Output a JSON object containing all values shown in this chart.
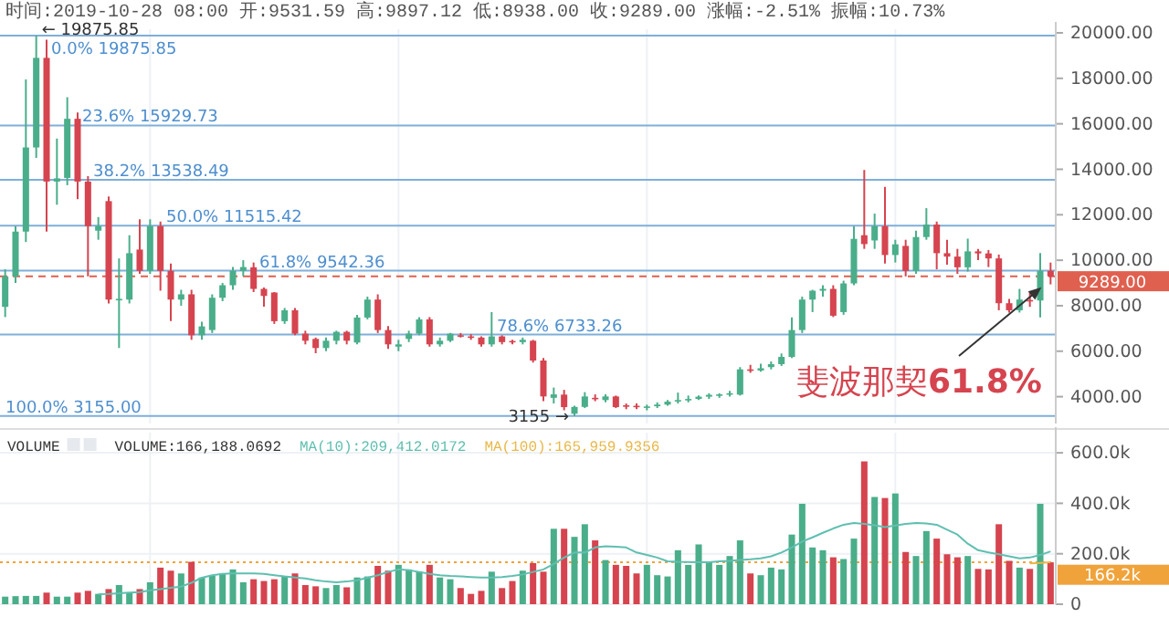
{
  "chart_data": [
    {
      "type": "candlestick",
      "title": "时间:2019-10-28 08:00  开:9531.59  高:9897.12  低:8938.00  收:9289.00  涨幅:-2.51%  振幅:10.73%",
      "categories": [
        null,
        null,
        null,
        null,
        null,
        null,
        null,
        null,
        null,
        null,
        null,
        null,
        null,
        null,
        null,
        null,
        null,
        null,
        null,
        null,
        null,
        null,
        null,
        null,
        null,
        null,
        null,
        null,
        null,
        null,
        null,
        null,
        null,
        null,
        null,
        null,
        null,
        null,
        null,
        null,
        null,
        null,
        null,
        null,
        null,
        null,
        null,
        null,
        null,
        null,
        null,
        null,
        null,
        null,
        null,
        null,
        null,
        null,
        null,
        null,
        null,
        null,
        null,
        null,
        null,
        null,
        null,
        null,
        null,
        null,
        null,
        null,
        null,
        null,
        null,
        null,
        null,
        null,
        null,
        null,
        null,
        null,
        null,
        null,
        null,
        null,
        null,
        null,
        null,
        null,
        null,
        null,
        null,
        null,
        null,
        null,
        null,
        null,
        null,
        null,
        null,
        null
      ],
      "ohlc": [
        [
          7950,
          9600,
          7500,
          9290
        ],
        [
          9290,
          11500,
          9000,
          11260
        ],
        [
          11260,
          17950,
          10800,
          14960
        ],
        [
          14960,
          19875.85,
          14500,
          18900
        ],
        [
          18900,
          19700,
          11260,
          13460
        ],
        [
          13460,
          15350,
          12440,
          13600
        ],
        [
          13620,
          17170,
          13300,
          16220
        ],
        [
          16220,
          16500,
          12680,
          13460
        ],
        [
          13460,
          13700,
          9290,
          11500
        ],
        [
          11300,
          11900,
          10900,
          11500
        ],
        [
          12600,
          12800,
          8100,
          8270
        ],
        [
          8270,
          10080,
          6140,
          8300
        ],
        [
          8270,
          11100,
          8100,
          10310
        ],
        [
          10470,
          11800,
          9400,
          9530
        ],
        [
          9530,
          11800,
          9400,
          11500
        ],
        [
          11500,
          11700,
          8660,
          9530
        ],
        [
          9530,
          9850,
          7330,
          8270
        ],
        [
          8270,
          8700,
          8000,
          8500
        ],
        [
          8500,
          8700,
          6500,
          6700
        ],
        [
          6700,
          7300,
          6500,
          7090
        ],
        [
          6930,
          8500,
          6800,
          8350
        ],
        [
          8350,
          9000,
          8200,
          8900
        ],
        [
          8900,
          9700,
          8700,
          9530
        ],
        [
          9530,
          10000,
          9300,
          9700
        ],
        [
          9690,
          9900,
          8600,
          8740
        ],
        [
          8740,
          8800,
          7960,
          8430
        ],
        [
          8580,
          8600,
          7200,
          7320
        ],
        [
          7320,
          7900,
          7200,
          7800
        ],
        [
          7800,
          7900,
          6700,
          6770
        ],
        [
          6770,
          6900,
          6300,
          6460
        ],
        [
          6540,
          6600,
          5910,
          6140
        ],
        [
          6140,
          6600,
          6000,
          6460
        ],
        [
          6460,
          6900,
          6300,
          6850
        ],
        [
          6850,
          6900,
          6300,
          6460
        ],
        [
          6380,
          7600,
          6300,
          7480
        ],
        [
          7480,
          8400,
          7400,
          8270
        ],
        [
          8270,
          8500,
          6800,
          6930
        ],
        [
          6930,
          7100,
          6100,
          6300
        ],
        [
          6200,
          6500,
          6000,
          6300
        ],
        [
          6540,
          6900,
          6400,
          6770
        ],
        [
          6770,
          7500,
          6700,
          7400
        ],
        [
          7400,
          7500,
          6200,
          6300
        ],
        [
          6300,
          6600,
          6200,
          6460
        ],
        [
          6460,
          6800,
          6400,
          6770
        ],
        [
          6700,
          6800,
          6600,
          6650
        ],
        [
          6650,
          6750,
          6500,
          6600
        ],
        [
          6600,
          6650,
          6200,
          6300
        ],
        [
          6300,
          7720,
          6200,
          6650
        ],
        [
          6650,
          6700,
          6300,
          6400
        ],
        [
          6450,
          6500,
          6300,
          6400
        ],
        [
          6400,
          6600,
          6300,
          6500
        ],
        [
          6460,
          6500,
          5500,
          5590
        ],
        [
          5590,
          5700,
          3800,
          4010
        ],
        [
          3950,
          4400,
          3700,
          4100
        ],
        [
          4090,
          4300,
          3400,
          3540
        ],
        [
          3250,
          3600,
          3155,
          3550
        ],
        [
          3550,
          4200,
          3500,
          4010
        ],
        [
          3950,
          4100,
          3800,
          3900
        ],
        [
          3850,
          4100,
          3750,
          4010
        ],
        [
          4010,
          4050,
          3500,
          3540
        ],
        [
          3620,
          3700,
          3450,
          3600
        ],
        [
          3600,
          3700,
          3450,
          3550
        ],
        [
          3540,
          3650,
          3400,
          3570
        ],
        [
          3580,
          3750,
          3500,
          3650
        ],
        [
          3650,
          3850,
          3600,
          3780
        ],
        [
          3800,
          4180,
          3700,
          3850
        ],
        [
          3850,
          4050,
          3750,
          3900
        ],
        [
          3900,
          4050,
          3850,
          4000
        ],
        [
          4000,
          4150,
          3900,
          4080
        ],
        [
          4050,
          4150,
          3950,
          4100
        ],
        [
          4100,
          4250,
          4000,
          4150
        ],
        [
          4090,
          5300,
          4050,
          5200
        ],
        [
          5200,
          5400,
          5050,
          5150
        ],
        [
          5150,
          5450,
          5100,
          5250
        ],
        [
          5300,
          5550,
          5200,
          5430
        ],
        [
          5430,
          5900,
          5350,
          5750
        ],
        [
          5750,
          7490,
          5700,
          6930
        ],
        [
          6930,
          8400,
          6800,
          8270
        ],
        [
          8270,
          8700,
          7720,
          8660
        ],
        [
          8660,
          8900,
          8400,
          8740
        ],
        [
          8740,
          8900,
          7500,
          7560
        ],
        [
          7720,
          9100,
          7600,
          8980
        ],
        [
          8980,
          11500,
          8900,
          10940
        ],
        [
          11100,
          13970,
          10500,
          10710
        ],
        [
          10870,
          12050,
          10500,
          11500
        ],
        [
          11500,
          13230,
          9850,
          10230
        ],
        [
          10230,
          10900,
          9900,
          10700
        ],
        [
          10630,
          10900,
          9290,
          9530
        ],
        [
          9530,
          11300,
          9400,
          11020
        ],
        [
          11020,
          12290,
          10900,
          11570
        ],
        [
          11570,
          11700,
          9600,
          10310
        ],
        [
          10310,
          10900,
          9800,
          10160
        ],
        [
          10160,
          10500,
          9400,
          9690
        ],
        [
          9690,
          10950,
          9500,
          10390
        ],
        [
          10390,
          10500,
          10000,
          10300
        ],
        [
          10300,
          10450,
          9700,
          10080
        ],
        [
          10080,
          10250,
          7800,
          8110
        ],
        [
          8110,
          8300,
          7700,
          7800
        ],
        [
          7800,
          8740,
          7700,
          8270
        ],
        [
          8250,
          8600,
          7950,
          8230
        ],
        [
          8230,
          10320,
          7490,
          9530
        ],
        [
          9531.59,
          9897.12,
          8938,
          9289
        ]
      ],
      "colors": [
        "#4aae8a",
        "#4aae8a",
        "#4aae8a",
        "#4aae8a",
        "#d5444f",
        "#4aae8a",
        "#4aae8a",
        "#d5444f",
        "#d5444f",
        "#4aae8a",
        "#d5444f",
        "#4aae8a",
        "#4aae8a",
        "#d5444f",
        "#4aae8a",
        "#d5444f",
        "#d5444f",
        "#4aae8a",
        "#d5444f",
        "#4aae8a",
        "#4aae8a",
        "#4aae8a",
        "#4aae8a",
        "#4aae8a",
        "#d5444f",
        "#d5444f",
        "#d5444f",
        "#4aae8a",
        "#d5444f",
        "#d5444f",
        "#d5444f",
        "#4aae8a",
        "#4aae8a",
        "#d5444f",
        "#4aae8a",
        "#4aae8a",
        "#d5444f",
        "#d5444f",
        "#4aae8a",
        "#4aae8a",
        "#4aae8a",
        "#d5444f",
        "#4aae8a",
        "#4aae8a",
        "#d5444f",
        "#d5444f",
        "#d5444f",
        "#4aae8a",
        "#d5444f",
        "#d5444f",
        "#4aae8a",
        "#d5444f",
        "#d5444f",
        "#4aae8a",
        "#d5444f",
        "#4aae8a",
        "#4aae8a",
        "#d5444f",
        "#4aae8a",
        "#d5444f",
        "#d5444f",
        "#d5444f",
        "#4aae8a",
        "#4aae8a",
        "#4aae8a",
        "#4aae8a",
        "#4aae8a",
        "#4aae8a",
        "#4aae8a",
        "#4aae8a",
        "#4aae8a",
        "#4aae8a",
        "#d5444f",
        "#4aae8a",
        "#4aae8a",
        "#4aae8a",
        "#4aae8a",
        "#4aae8a",
        "#4aae8a",
        "#4aae8a",
        "#d5444f",
        "#4aae8a",
        "#4aae8a",
        "#d5444f",
        "#4aae8a",
        "#d5444f",
        "#4aae8a",
        "#d5444f",
        "#4aae8a",
        "#4aae8a",
        "#d5444f",
        "#d5444f",
        "#d5444f",
        "#4aae8a",
        "#d5444f",
        "#d5444f",
        "#d5444f",
        "#d5444f",
        "#4aae8a",
        "#d5444f",
        "#4aae8a",
        "#d5444f"
      ],
      "ylim": [
        2820,
        20160
      ],
      "yticks": [
        {
          "value": 4000,
          "label": "4000.00"
        },
        {
          "value": 6000,
          "label": "6000.00"
        },
        {
          "value": 8000,
          "label": "8000.00"
        },
        {
          "value": 10000,
          "label": "10000.00"
        },
        {
          "value": 12000,
          "label": "12000.00"
        },
        {
          "value": 14000,
          "label": "14000.00"
        },
        {
          "value": 16000,
          "label": "16000.00"
        },
        {
          "value": 18000,
          "label": "18000.00"
        },
        {
          "value": 20000,
          "label": "20000.00"
        }
      ],
      "ref_lines": [
        {
          "axis": "y",
          "value": 19875.85,
          "label": "0.0% 19875.85",
          "color": "#7fafd9"
        },
        {
          "axis": "y",
          "value": 15929.73,
          "label": "23.6% 15929.73",
          "color": "#7fafd9"
        },
        {
          "axis": "y",
          "value": 13538.49,
          "label": "38.2% 13538.49",
          "color": "#7fafd9"
        },
        {
          "axis": "y",
          "value": 11515.42,
          "label": "50.0% 11515.42",
          "color": "#7fafd9"
        },
        {
          "axis": "y",
          "value": 9542.36,
          "label": "61.8% 9542.36",
          "color": "#7fafd9"
        },
        {
          "axis": "y",
          "value": 6733.26,
          "label": "78.6% 6733.26",
          "color": "#7fafd9"
        },
        {
          "axis": "y",
          "value": 3155.0,
          "label": "100.0% 3155.00",
          "color": "#7fafd9"
        },
        {
          "axis": "y",
          "value": 9289,
          "label": "9289.00",
          "color": "#e0604f",
          "line_style": "dashed"
        }
      ],
      "annotations": [
        "← 19875.85",
        "3155 →",
        "斐波那契61.8%"
      ],
      "grid": "x",
      "tick_labels": "y"
    },
    {
      "type": "bar",
      "title": "VOLUME",
      "categories": [
        null,
        null,
        null,
        null,
        null,
        null,
        null,
        null,
        null,
        null,
        null,
        null,
        null,
        null,
        null,
        null,
        null,
        null,
        null,
        null,
        null,
        null,
        null,
        null,
        null,
        null,
        null,
        null,
        null,
        null,
        null,
        null,
        null,
        null,
        null,
        null,
        null,
        null,
        null,
        null,
        null,
        null,
        null,
        null,
        null,
        null,
        null,
        null,
        null,
        null,
        null,
        null,
        null,
        null,
        null,
        null,
        null,
        null,
        null,
        null,
        null,
        null,
        null,
        null,
        null,
        null,
        null,
        null,
        null,
        null,
        null,
        null,
        null,
        null,
        null,
        null,
        null,
        null,
        null,
        null,
        null,
        null,
        null,
        null,
        null,
        null,
        null,
        null,
        null,
        null,
        null,
        null,
        null,
        null,
        null,
        null,
        null,
        null,
        null,
        null,
        null,
        null
      ],
      "series": [
        {
          "colors": [
            "#4aae8a",
            "#4aae8a",
            "#4aae8a",
            "#4aae8a",
            "#d5444f",
            "#4aae8a",
            "#4aae8a",
            "#d5444f",
            "#d5444f",
            "#4aae8a",
            "#d5444f",
            "#4aae8a",
            "#4aae8a",
            "#d5444f",
            "#4aae8a",
            "#d5444f",
            "#d5444f",
            "#4aae8a",
            "#d5444f",
            "#4aae8a",
            "#4aae8a",
            "#4aae8a",
            "#4aae8a",
            "#4aae8a",
            "#d5444f",
            "#d5444f",
            "#d5444f",
            "#4aae8a",
            "#d5444f",
            "#d5444f",
            "#d5444f",
            "#4aae8a",
            "#4aae8a",
            "#d5444f",
            "#4aae8a",
            "#4aae8a",
            "#d5444f",
            "#d5444f",
            "#4aae8a",
            "#4aae8a",
            "#4aae8a",
            "#d5444f",
            "#4aae8a",
            "#4aae8a",
            "#d5444f",
            "#d5444f",
            "#d5444f",
            "#4aae8a",
            "#d5444f",
            "#d5444f",
            "#4aae8a",
            "#d5444f",
            "#d5444f",
            "#4aae8a",
            "#d5444f",
            "#4aae8a",
            "#4aae8a",
            "#d5444f",
            "#4aae8a",
            "#d5444f",
            "#d5444f",
            "#d5444f",
            "#4aae8a",
            "#4aae8a",
            "#4aae8a",
            "#4aae8a",
            "#4aae8a",
            "#4aae8a",
            "#4aae8a",
            "#4aae8a",
            "#4aae8a",
            "#4aae8a",
            "#d5444f",
            "#4aae8a",
            "#4aae8a",
            "#4aae8a",
            "#4aae8a",
            "#4aae8a",
            "#4aae8a",
            "#4aae8a",
            "#d5444f",
            "#4aae8a",
            "#4aae8a",
            "#d5444f",
            "#4aae8a",
            "#d5444f",
            "#4aae8a",
            "#d5444f",
            "#4aae8a",
            "#4aae8a",
            "#d5444f",
            "#d5444f",
            "#d5444f",
            "#4aae8a",
            "#d5444f",
            "#d5444f",
            "#d5444f",
            "#d5444f",
            "#4aae8a",
            "#d5444f",
            "#4aae8a",
            "#d5444f"
          ],
          "values": [
            30000,
            32000,
            33000,
            33000,
            46000,
            30000,
            30000,
            46000,
            53000,
            41000,
            60000,
            76000,
            46000,
            60000,
            87000,
            145000,
            133000,
            122000,
            168000,
            106000,
            113000,
            122000,
            138000,
            87000,
            99000,
            92000,
            99000,
            110000,
            122000,
            76000,
            71000,
            64000,
            76000,
            67000,
            106000,
            110000,
            152000,
            133000,
            156000,
            138000,
            129000,
            156000,
            106000,
            99000,
            64000,
            41000,
            53000,
            129000,
            64000,
            92000,
            133000,
            163000,
            129000,
            299000,
            299000,
            267000,
            317000,
            253000,
            175000,
            156000,
            152000,
            122000,
            156000,
            115000,
            110000,
            214000,
            156000,
            237000,
            168000,
            156000,
            191000,
            253000,
            122000,
            115000,
            145000,
            138000,
            276000,
            398000,
            225000,
            214000,
            186000,
            179000,
            260000,
            566000,
            425000,
            421000,
            439000,
            207000,
            191000,
            290000,
            260000,
            198000,
            186000,
            191000,
            140000,
            138000,
            317000,
            172000,
            145000,
            140000,
            398000,
            166188.0692
          ]
        },
        {
          "name": "MA(10):209,412.0172",
          "type": "line",
          "color": "#5fbfb0",
          "values": [
            null,
            null,
            null,
            null,
            null,
            null,
            null,
            null,
            null,
            40000,
            41000,
            43000,
            46000,
            48000,
            55000,
            60000,
            65000,
            70000,
            85000,
            105000,
            115000,
            120000,
            122000,
            122000,
            122000,
            120000,
            115000,
            110000,
            106000,
            102000,
            95000,
            90000,
            87000,
            90000,
            95000,
            105000,
            115000,
            128000,
            138000,
            135000,
            128000,
            120000,
            115000,
            112000,
            110000,
            108000,
            106000,
            106000,
            108000,
            112000,
            118000,
            128000,
            138000,
            160000,
            185000,
            205000,
            205000,
            225000,
            230000,
            228000,
            225000,
            205000,
            195000,
            185000,
            170000,
            168000,
            167000,
            166000,
            166000,
            170000,
            172000,
            175000,
            178000,
            182000,
            190000,
            205000,
            225000,
            248000,
            265000,
            283000,
            300000,
            315000,
            322000,
            318000,
            313000,
            306000,
            312000,
            318000,
            322000,
            320000,
            315000,
            295000,
            276000,
            240000,
            214000,
            205000,
            198000,
            190000,
            182000,
            185000,
            195000,
            209412.0172
          ]
        },
        {
          "name": "MA(100):165,959.9356",
          "type": "line",
          "color": "#e8b84a",
          "values": [
            null,
            null,
            null,
            null,
            null,
            null,
            null,
            null,
            null,
            null,
            null,
            null,
            null,
            null,
            null,
            null,
            null,
            null,
            null,
            null,
            null,
            null,
            null,
            null,
            null,
            null,
            null,
            null,
            null,
            null,
            null,
            null,
            null,
            null,
            null,
            null,
            null,
            null,
            null,
            null,
            null,
            null,
            null,
            null,
            null,
            null,
            null,
            null,
            null,
            null,
            null,
            null,
            null,
            null,
            null,
            null,
            null,
            null,
            null,
            null,
            null,
            null,
            null,
            null,
            null,
            null,
            null,
            null,
            null,
            null,
            null,
            null,
            null,
            null,
            null,
            null,
            null,
            null,
            null,
            null,
            null,
            null,
            null,
            null,
            null,
            null,
            null,
            null,
            null,
            null,
            null,
            null,
            null,
            null,
            null,
            null,
            null,
            null,
            null,
            162000,
            164000,
            165959.9356
          ]
        }
      ],
      "ylim": [
        0,
        680000
      ],
      "yticks": [
        {
          "value": 0,
          "label": "0"
        },
        {
          "value": 200000,
          "label": "200.0k"
        },
        {
          "value": 400000,
          "label": "400.0k"
        },
        {
          "value": 600000,
          "label": "600.0k"
        }
      ],
      "ref_lines": [
        {
          "axis": "y",
          "value": 166188.0692,
          "label": "166.2k",
          "color": "#f0a33a",
          "line_style": "dotted"
        }
      ],
      "annotations": [
        "VOLUME:166,188.0692"
      ],
      "legend": "top",
      "grid": true,
      "tick_labels": "y"
    }
  ]
}
